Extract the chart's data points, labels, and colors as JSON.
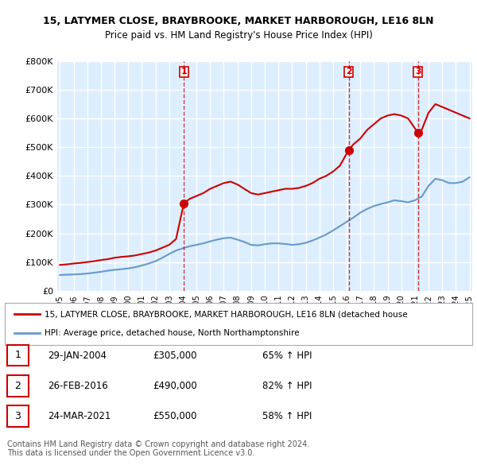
{
  "title_line1": "15, LATYMER CLOSE, BRAYBROOKE, MARKET HARBOROUGH, LE16 8LN",
  "title_line2": "Price paid vs. HM Land Registry's House Price Index (HPI)",
  "x_start_year": 1995,
  "x_end_year": 2025,
  "y_min": 0,
  "y_max": 800000,
  "y_ticks": [
    0,
    100000,
    200000,
    300000,
    400000,
    500000,
    600000,
    700000,
    800000
  ],
  "y_tick_labels": [
    "£0",
    "£100K",
    "£200K",
    "£300K",
    "£400K",
    "£500K",
    "£600K",
    "£700K",
    "£800K"
  ],
  "red_line_color": "#cc0000",
  "blue_line_color": "#6699cc",
  "vline_color": "#cc0000",
  "background_color": "#ffffff",
  "plot_bg_color": "#ddeeff",
  "grid_color": "#ffffff",
  "sale_points": [
    {
      "date_x": 2004.08,
      "price": 305000,
      "label": "1"
    },
    {
      "date_x": 2016.15,
      "price": 490000,
      "label": "2"
    },
    {
      "date_x": 2021.23,
      "price": 550000,
      "label": "3"
    }
  ],
  "red_line_data_x": [
    1995.0,
    1995.5,
    1996.0,
    1996.5,
    1997.0,
    1997.5,
    1998.0,
    1998.5,
    1999.0,
    1999.5,
    2000.0,
    2000.5,
    2001.0,
    2001.5,
    2002.0,
    2002.5,
    2003.0,
    2003.5,
    2004.08,
    2004.5,
    2005.0,
    2005.5,
    2006.0,
    2006.5,
    2007.0,
    2007.5,
    2008.0,
    2008.5,
    2009.0,
    2009.5,
    2010.0,
    2010.5,
    2011.0,
    2011.5,
    2012.0,
    2012.5,
    2013.0,
    2013.5,
    2014.0,
    2014.5,
    2015.0,
    2015.5,
    2016.15,
    2016.5,
    2017.0,
    2017.5,
    2018.0,
    2018.5,
    2019.0,
    2019.5,
    2020.0,
    2020.5,
    2021.23,
    2021.5,
    2022.0,
    2022.5,
    2023.0,
    2023.5,
    2024.0,
    2024.5,
    2025.0
  ],
  "red_line_data_y": [
    90000,
    92000,
    95000,
    97000,
    100000,
    103000,
    107000,
    110000,
    115000,
    118000,
    120000,
    123000,
    128000,
    133000,
    140000,
    150000,
    160000,
    180000,
    305000,
    320000,
    330000,
    340000,
    355000,
    365000,
    375000,
    380000,
    370000,
    355000,
    340000,
    335000,
    340000,
    345000,
    350000,
    355000,
    355000,
    358000,
    365000,
    375000,
    390000,
    400000,
    415000,
    435000,
    490000,
    510000,
    530000,
    560000,
    580000,
    600000,
    610000,
    615000,
    610000,
    600000,
    550000,
    560000,
    620000,
    650000,
    640000,
    630000,
    620000,
    610000,
    600000
  ],
  "blue_line_data_x": [
    1995.0,
    1995.5,
    1996.0,
    1996.5,
    1997.0,
    1997.5,
    1998.0,
    1998.5,
    1999.0,
    1999.5,
    2000.0,
    2000.5,
    2001.0,
    2001.5,
    2002.0,
    2002.5,
    2003.0,
    2003.5,
    2004.0,
    2004.5,
    2005.0,
    2005.5,
    2006.0,
    2006.5,
    2007.0,
    2007.5,
    2008.0,
    2008.5,
    2009.0,
    2009.5,
    2010.0,
    2010.5,
    2011.0,
    2011.5,
    2012.0,
    2012.5,
    2013.0,
    2013.5,
    2014.0,
    2014.5,
    2015.0,
    2015.5,
    2016.0,
    2016.5,
    2017.0,
    2017.5,
    2018.0,
    2018.5,
    2019.0,
    2019.5,
    2020.0,
    2020.5,
    2021.0,
    2021.5,
    2022.0,
    2022.5,
    2023.0,
    2023.5,
    2024.0,
    2024.5,
    2025.0
  ],
  "blue_line_data_y": [
    55000,
    56000,
    57000,
    58000,
    60000,
    63000,
    66000,
    70000,
    73000,
    75000,
    78000,
    82000,
    88000,
    95000,
    103000,
    115000,
    128000,
    140000,
    148000,
    155000,
    160000,
    165000,
    172000,
    178000,
    183000,
    185000,
    178000,
    170000,
    160000,
    158000,
    162000,
    165000,
    165000,
    163000,
    160000,
    162000,
    167000,
    175000,
    185000,
    196000,
    210000,
    225000,
    240000,
    255000,
    272000,
    285000,
    295000,
    302000,
    308000,
    315000,
    312000,
    308000,
    315000,
    328000,
    365000,
    390000,
    385000,
    375000,
    375000,
    380000,
    395000
  ],
  "legend_red_label": "15, LATYMER CLOSE, BRAYBROOKE, MARKET HARBOROUGH, LE16 8LN (detached house",
  "legend_blue_label": "HPI: Average price, detached house, North Northamptonshire",
  "table_rows": [
    {
      "num": "1",
      "date": "29-JAN-2004",
      "price": "£305,000",
      "hpi": "65% ↑ HPI"
    },
    {
      "num": "2",
      "date": "26-FEB-2016",
      "price": "£490,000",
      "hpi": "82% ↑ HPI"
    },
    {
      "num": "3",
      "date": "24-MAR-2021",
      "price": "£550,000",
      "hpi": "58% ↑ HPI"
    }
  ],
  "footer_text": "Contains HM Land Registry data © Crown copyright and database right 2024.\nThis data is licensed under the Open Government Licence v3.0.",
  "x_tick_years": [
    1995,
    1996,
    1997,
    1998,
    1999,
    2000,
    2001,
    2002,
    2003,
    2004,
    2005,
    2006,
    2007,
    2008,
    2009,
    2010,
    2011,
    2012,
    2013,
    2014,
    2015,
    2016,
    2017,
    2018,
    2019,
    2020,
    2021,
    2022,
    2023,
    2024,
    2025
  ]
}
